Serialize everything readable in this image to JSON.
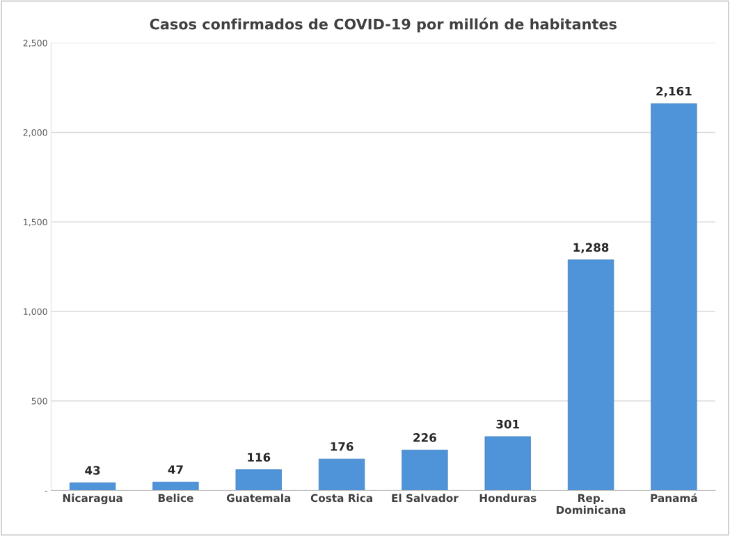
{
  "chart_data": {
    "type": "bar",
    "title": "Casos confirmados de COVID-19 por millón de habitantes",
    "categories": [
      "Nicaragua",
      "Belice",
      "Guatemala",
      "Costa Rica",
      "El Salvador",
      "Honduras",
      "Rep.\nDominicana",
      "Panamá"
    ],
    "values": [
      43,
      47,
      116,
      176,
      226,
      301,
      1288,
      2161
    ],
    "value_labels": [
      "43",
      "47",
      "116",
      "176",
      "226",
      "301",
      "1,288",
      "2,161"
    ],
    "color": "#4f93d8",
    "ylim": [
      0,
      2500
    ],
    "yticks": [
      {
        "value": 0,
        "label": "-"
      },
      {
        "value": 500,
        "label": "500"
      },
      {
        "value": 1000,
        "label": "1,000"
      },
      {
        "value": 1500,
        "label": "1,500"
      },
      {
        "value": 2000,
        "label": "2,000"
      },
      {
        "value": 2500,
        "label": "2,500"
      }
    ],
    "grid": "y"
  }
}
